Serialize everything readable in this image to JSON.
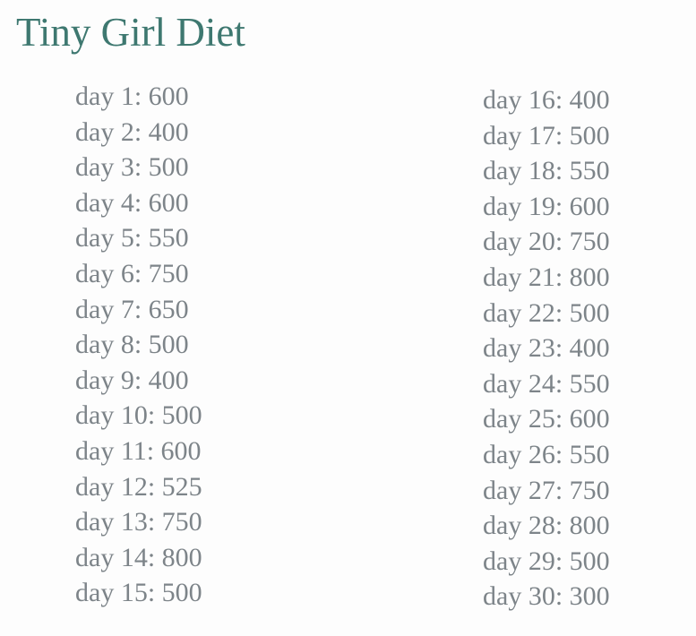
{
  "title": "Tiny Girl Diet",
  "colors": {
    "title": "#3e7870",
    "text": "#7d8489"
  },
  "days": [
    {
      "label": "day 1: 600"
    },
    {
      "label": "day 2: 400"
    },
    {
      "label": "day 3: 500"
    },
    {
      "label": "day 4: 600"
    },
    {
      "label": "day 5: 550"
    },
    {
      "label": "day 6: 750"
    },
    {
      "label": "day 7: 650"
    },
    {
      "label": "day 8: 500"
    },
    {
      "label": "day 9: 400"
    },
    {
      "label": "day 10: 500"
    },
    {
      "label": "day 11: 600"
    },
    {
      "label": "day 12: 525"
    },
    {
      "label": "day 13: 750"
    },
    {
      "label": "day 14: 800"
    },
    {
      "label": "day 15: 500"
    },
    {
      "label": "day 16: 400"
    },
    {
      "label": "day 17: 500"
    },
    {
      "label": "day 18: 550"
    },
    {
      "label": "day 19: 600"
    },
    {
      "label": "day 20: 750"
    },
    {
      "label": "day 21: 800"
    },
    {
      "label": "day 22: 500"
    },
    {
      "label": "day 23: 400"
    },
    {
      "label": "day 24: 550"
    },
    {
      "label": "day 25: 600"
    },
    {
      "label": "day 26: 550"
    },
    {
      "label": "day 27: 750"
    },
    {
      "label": "day 28: 800"
    },
    {
      "label": "day 29: 500"
    },
    {
      "label": "day 30: 300"
    }
  ]
}
